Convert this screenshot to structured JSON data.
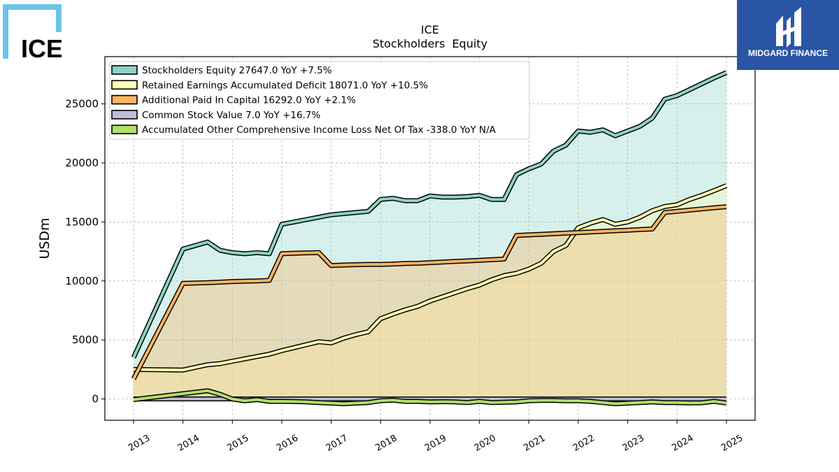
{
  "logos": {
    "left_text": "ICE",
    "right_text": "MIDGARD FINANCE",
    "brand_blue": "#2a55a6",
    "ice_blue": "#6cc5e9"
  },
  "chart_data": {
    "type": "line",
    "title": "ICE",
    "subtitle": "Stockholders  Equity",
    "ylabel": "USDm",
    "xlabel": "",
    "ylim": [
      -1800,
      29000
    ],
    "xlim": [
      2012.42,
      2025.58
    ],
    "yticks": [
      0,
      5000,
      10000,
      15000,
      20000,
      25000
    ],
    "xticks": [
      "2013",
      "2014",
      "2015",
      "2016",
      "2017",
      "2018",
      "2019",
      "2020",
      "2021",
      "2022",
      "2023",
      "2024",
      "2025"
    ],
    "grid": true,
    "legend_position": "top-left",
    "series": [
      {
        "name": "Stockholders Equity",
        "legend": "Stockholders Equity  27647.0 YoY +7.5%",
        "color": "#8dd3c7",
        "values": [
          [
            2013.0,
            3500
          ],
          [
            2014.0,
            12700
          ],
          [
            2014.5,
            13300
          ],
          [
            2014.75,
            12600
          ],
          [
            2015.0,
            12400
          ],
          [
            2015.25,
            12300
          ],
          [
            2015.5,
            12400
          ],
          [
            2015.75,
            12300
          ],
          [
            2016.0,
            14800
          ],
          [
            2016.25,
            15000
          ],
          [
            2016.5,
            15200
          ],
          [
            2016.75,
            15400
          ],
          [
            2017.0,
            15600
          ],
          [
            2017.25,
            15700
          ],
          [
            2017.5,
            15800
          ],
          [
            2017.75,
            15900
          ],
          [
            2018.0,
            16900
          ],
          [
            2018.25,
            17000
          ],
          [
            2018.5,
            16800
          ],
          [
            2018.75,
            16800
          ],
          [
            2019.0,
            17200
          ],
          [
            2019.25,
            17100
          ],
          [
            2019.5,
            17100
          ],
          [
            2019.75,
            17150
          ],
          [
            2020.0,
            17250
          ],
          [
            2020.25,
            16900
          ],
          [
            2020.5,
            16900
          ],
          [
            2020.75,
            19000
          ],
          [
            2021.0,
            19500
          ],
          [
            2021.25,
            19900
          ],
          [
            2021.5,
            21000
          ],
          [
            2021.75,
            21500
          ],
          [
            2022.0,
            22700
          ],
          [
            2022.25,
            22600
          ],
          [
            2022.5,
            22800
          ],
          [
            2022.75,
            22300
          ],
          [
            2023.0,
            22700
          ],
          [
            2023.25,
            23100
          ],
          [
            2023.5,
            23800
          ],
          [
            2023.75,
            25400
          ],
          [
            2024.0,
            25700
          ],
          [
            2024.25,
            26200
          ],
          [
            2024.5,
            26700
          ],
          [
            2024.75,
            27200
          ],
          [
            2025.0,
            27647
          ]
        ]
      },
      {
        "name": "Retained Earnings Accumulated Deficit",
        "legend": "Retained Earnings Accumulated Deficit  18071.0 YoY +10.5%",
        "color": "#ffffb3",
        "values": [
          [
            2013.0,
            2500
          ],
          [
            2014.0,
            2450
          ],
          [
            2014.5,
            2900
          ],
          [
            2014.75,
            3000
          ],
          [
            2015.0,
            3200
          ],
          [
            2015.25,
            3400
          ],
          [
            2015.5,
            3600
          ],
          [
            2015.75,
            3800
          ],
          [
            2016.0,
            4100
          ],
          [
            2016.25,
            4350
          ],
          [
            2016.5,
            4600
          ],
          [
            2016.75,
            4850
          ],
          [
            2017.0,
            4750
          ],
          [
            2017.25,
            5150
          ],
          [
            2017.5,
            5450
          ],
          [
            2017.75,
            5700
          ],
          [
            2018.0,
            6800
          ],
          [
            2018.25,
            7200
          ],
          [
            2018.5,
            7550
          ],
          [
            2018.75,
            7850
          ],
          [
            2019.0,
            8300
          ],
          [
            2019.25,
            8650
          ],
          [
            2019.5,
            9000
          ],
          [
            2019.75,
            9350
          ],
          [
            2020.0,
            9650
          ],
          [
            2020.25,
            10100
          ],
          [
            2020.5,
            10450
          ],
          [
            2020.75,
            10650
          ],
          [
            2021.0,
            11000
          ],
          [
            2021.25,
            11500
          ],
          [
            2021.5,
            12500
          ],
          [
            2021.75,
            13000
          ],
          [
            2022.0,
            14500
          ],
          [
            2022.25,
            14900
          ],
          [
            2022.5,
            15200
          ],
          [
            2022.75,
            14800
          ],
          [
            2023.0,
            15000
          ],
          [
            2023.25,
            15400
          ],
          [
            2023.5,
            15950
          ],
          [
            2023.75,
            16300
          ],
          [
            2024.0,
            16450
          ],
          [
            2024.25,
            16900
          ],
          [
            2024.5,
            17250
          ],
          [
            2024.75,
            17650
          ],
          [
            2025.0,
            18071
          ]
        ]
      },
      {
        "name": "Additional Paid In Capital",
        "legend": "Additional Paid In Capital  16292.0 YoY +2.1%",
        "color": "#fdb462",
        "values": [
          [
            2013.0,
            1700
          ],
          [
            2014.0,
            9800
          ],
          [
            2014.5,
            9850
          ],
          [
            2014.75,
            9900
          ],
          [
            2015.0,
            9950
          ],
          [
            2015.25,
            9980
          ],
          [
            2015.5,
            10000
          ],
          [
            2015.75,
            10050
          ],
          [
            2016.0,
            12300
          ],
          [
            2016.25,
            12350
          ],
          [
            2016.5,
            12380
          ],
          [
            2016.75,
            12400
          ],
          [
            2017.0,
            11300
          ],
          [
            2017.25,
            11350
          ],
          [
            2017.5,
            11380
          ],
          [
            2017.75,
            11400
          ],
          [
            2018.0,
            11400
          ],
          [
            2018.25,
            11430
          ],
          [
            2018.5,
            11480
          ],
          [
            2018.75,
            11500
          ],
          [
            2019.0,
            11550
          ],
          [
            2019.25,
            11600
          ],
          [
            2019.5,
            11650
          ],
          [
            2019.75,
            11700
          ],
          [
            2020.0,
            11750
          ],
          [
            2020.25,
            11800
          ],
          [
            2020.5,
            11850
          ],
          [
            2020.75,
            13850
          ],
          [
            2021.0,
            13900
          ],
          [
            2021.25,
            13950
          ],
          [
            2021.5,
            14000
          ],
          [
            2021.75,
            14050
          ],
          [
            2022.0,
            14100
          ],
          [
            2022.25,
            14150
          ],
          [
            2022.5,
            14200
          ],
          [
            2022.75,
            14250
          ],
          [
            2023.0,
            14300
          ],
          [
            2023.25,
            14350
          ],
          [
            2023.5,
            14400
          ],
          [
            2023.75,
            15800
          ],
          [
            2024.0,
            15900
          ],
          [
            2024.25,
            16000
          ],
          [
            2024.5,
            16100
          ],
          [
            2024.75,
            16200
          ],
          [
            2025.0,
            16292
          ]
        ]
      },
      {
        "name": "Common Stock Value",
        "legend": "Common Stock Value  7.0 YoY +16.7%",
        "color": "#bebada",
        "values": [
          [
            2013.0,
            6
          ],
          [
            2014.0,
            6
          ],
          [
            2014.5,
            6
          ],
          [
            2014.75,
            6
          ],
          [
            2015.0,
            6
          ],
          [
            2015.25,
            6
          ],
          [
            2015.5,
            6
          ],
          [
            2015.75,
            6
          ],
          [
            2016.0,
            6
          ],
          [
            2016.25,
            6
          ],
          [
            2016.5,
            6
          ],
          [
            2016.75,
            6
          ],
          [
            2017.0,
            6
          ],
          [
            2017.25,
            6
          ],
          [
            2017.5,
            6
          ],
          [
            2017.75,
            6
          ],
          [
            2018.0,
            6
          ],
          [
            2018.25,
            6
          ],
          [
            2018.5,
            6
          ],
          [
            2018.75,
            6
          ],
          [
            2019.0,
            6
          ],
          [
            2019.25,
            6
          ],
          [
            2019.5,
            6
          ],
          [
            2019.75,
            6
          ],
          [
            2020.0,
            6
          ],
          [
            2020.25,
            6
          ],
          [
            2020.5,
            6
          ],
          [
            2020.75,
            6
          ],
          [
            2021.0,
            6
          ],
          [
            2021.25,
            6
          ],
          [
            2021.5,
            6
          ],
          [
            2021.75,
            6
          ],
          [
            2022.0,
            6
          ],
          [
            2022.25,
            6
          ],
          [
            2022.5,
            6
          ],
          [
            2022.75,
            6
          ],
          [
            2023.0,
            6
          ],
          [
            2023.25,
            6
          ],
          [
            2023.5,
            6
          ],
          [
            2023.75,
            6
          ],
          [
            2024.0,
            6
          ],
          [
            2024.25,
            6
          ],
          [
            2024.5,
            6
          ],
          [
            2024.75,
            6
          ],
          [
            2025.0,
            7
          ]
        ]
      },
      {
        "name": "Accumulated Other Comprehensive Income Loss Net Of Tax",
        "legend": "Accumulated Other Comprehensive Income Loss Net Of Tax  -338.0 YoY N/A",
        "color": "#b3de69",
        "values": [
          [
            2013.0,
            -50
          ],
          [
            2014.0,
            450
          ],
          [
            2014.5,
            700
          ],
          [
            2014.75,
            400
          ],
          [
            2015.0,
            0
          ],
          [
            2015.25,
            -150
          ],
          [
            2015.5,
            -50
          ],
          [
            2015.75,
            -200
          ],
          [
            2016.0,
            -200
          ],
          [
            2016.25,
            -220
          ],
          [
            2016.5,
            -250
          ],
          [
            2016.75,
            -300
          ],
          [
            2017.0,
            -350
          ],
          [
            2017.25,
            -400
          ],
          [
            2017.5,
            -350
          ],
          [
            2017.75,
            -300
          ],
          [
            2018.0,
            -150
          ],
          [
            2018.25,
            -100
          ],
          [
            2018.5,
            -200
          ],
          [
            2018.75,
            -200
          ],
          [
            2019.0,
            -250
          ],
          [
            2019.25,
            -230
          ],
          [
            2019.5,
            -250
          ],
          [
            2019.75,
            -300
          ],
          [
            2020.0,
            -200
          ],
          [
            2020.25,
            -300
          ],
          [
            2020.5,
            -280
          ],
          [
            2020.75,
            -250
          ],
          [
            2021.0,
            -150
          ],
          [
            2021.25,
            -120
          ],
          [
            2021.5,
            -120
          ],
          [
            2021.75,
            -150
          ],
          [
            2022.0,
            -150
          ],
          [
            2022.25,
            -200
          ],
          [
            2022.5,
            -300
          ],
          [
            2022.75,
            -400
          ],
          [
            2023.0,
            -350
          ],
          [
            2023.25,
            -300
          ],
          [
            2023.5,
            -250
          ],
          [
            2023.75,
            -300
          ],
          [
            2024.0,
            -300
          ],
          [
            2024.25,
            -330
          ],
          [
            2024.5,
            -320
          ],
          [
            2024.75,
            -200
          ],
          [
            2025.0,
            -338
          ]
        ]
      }
    ]
  }
}
